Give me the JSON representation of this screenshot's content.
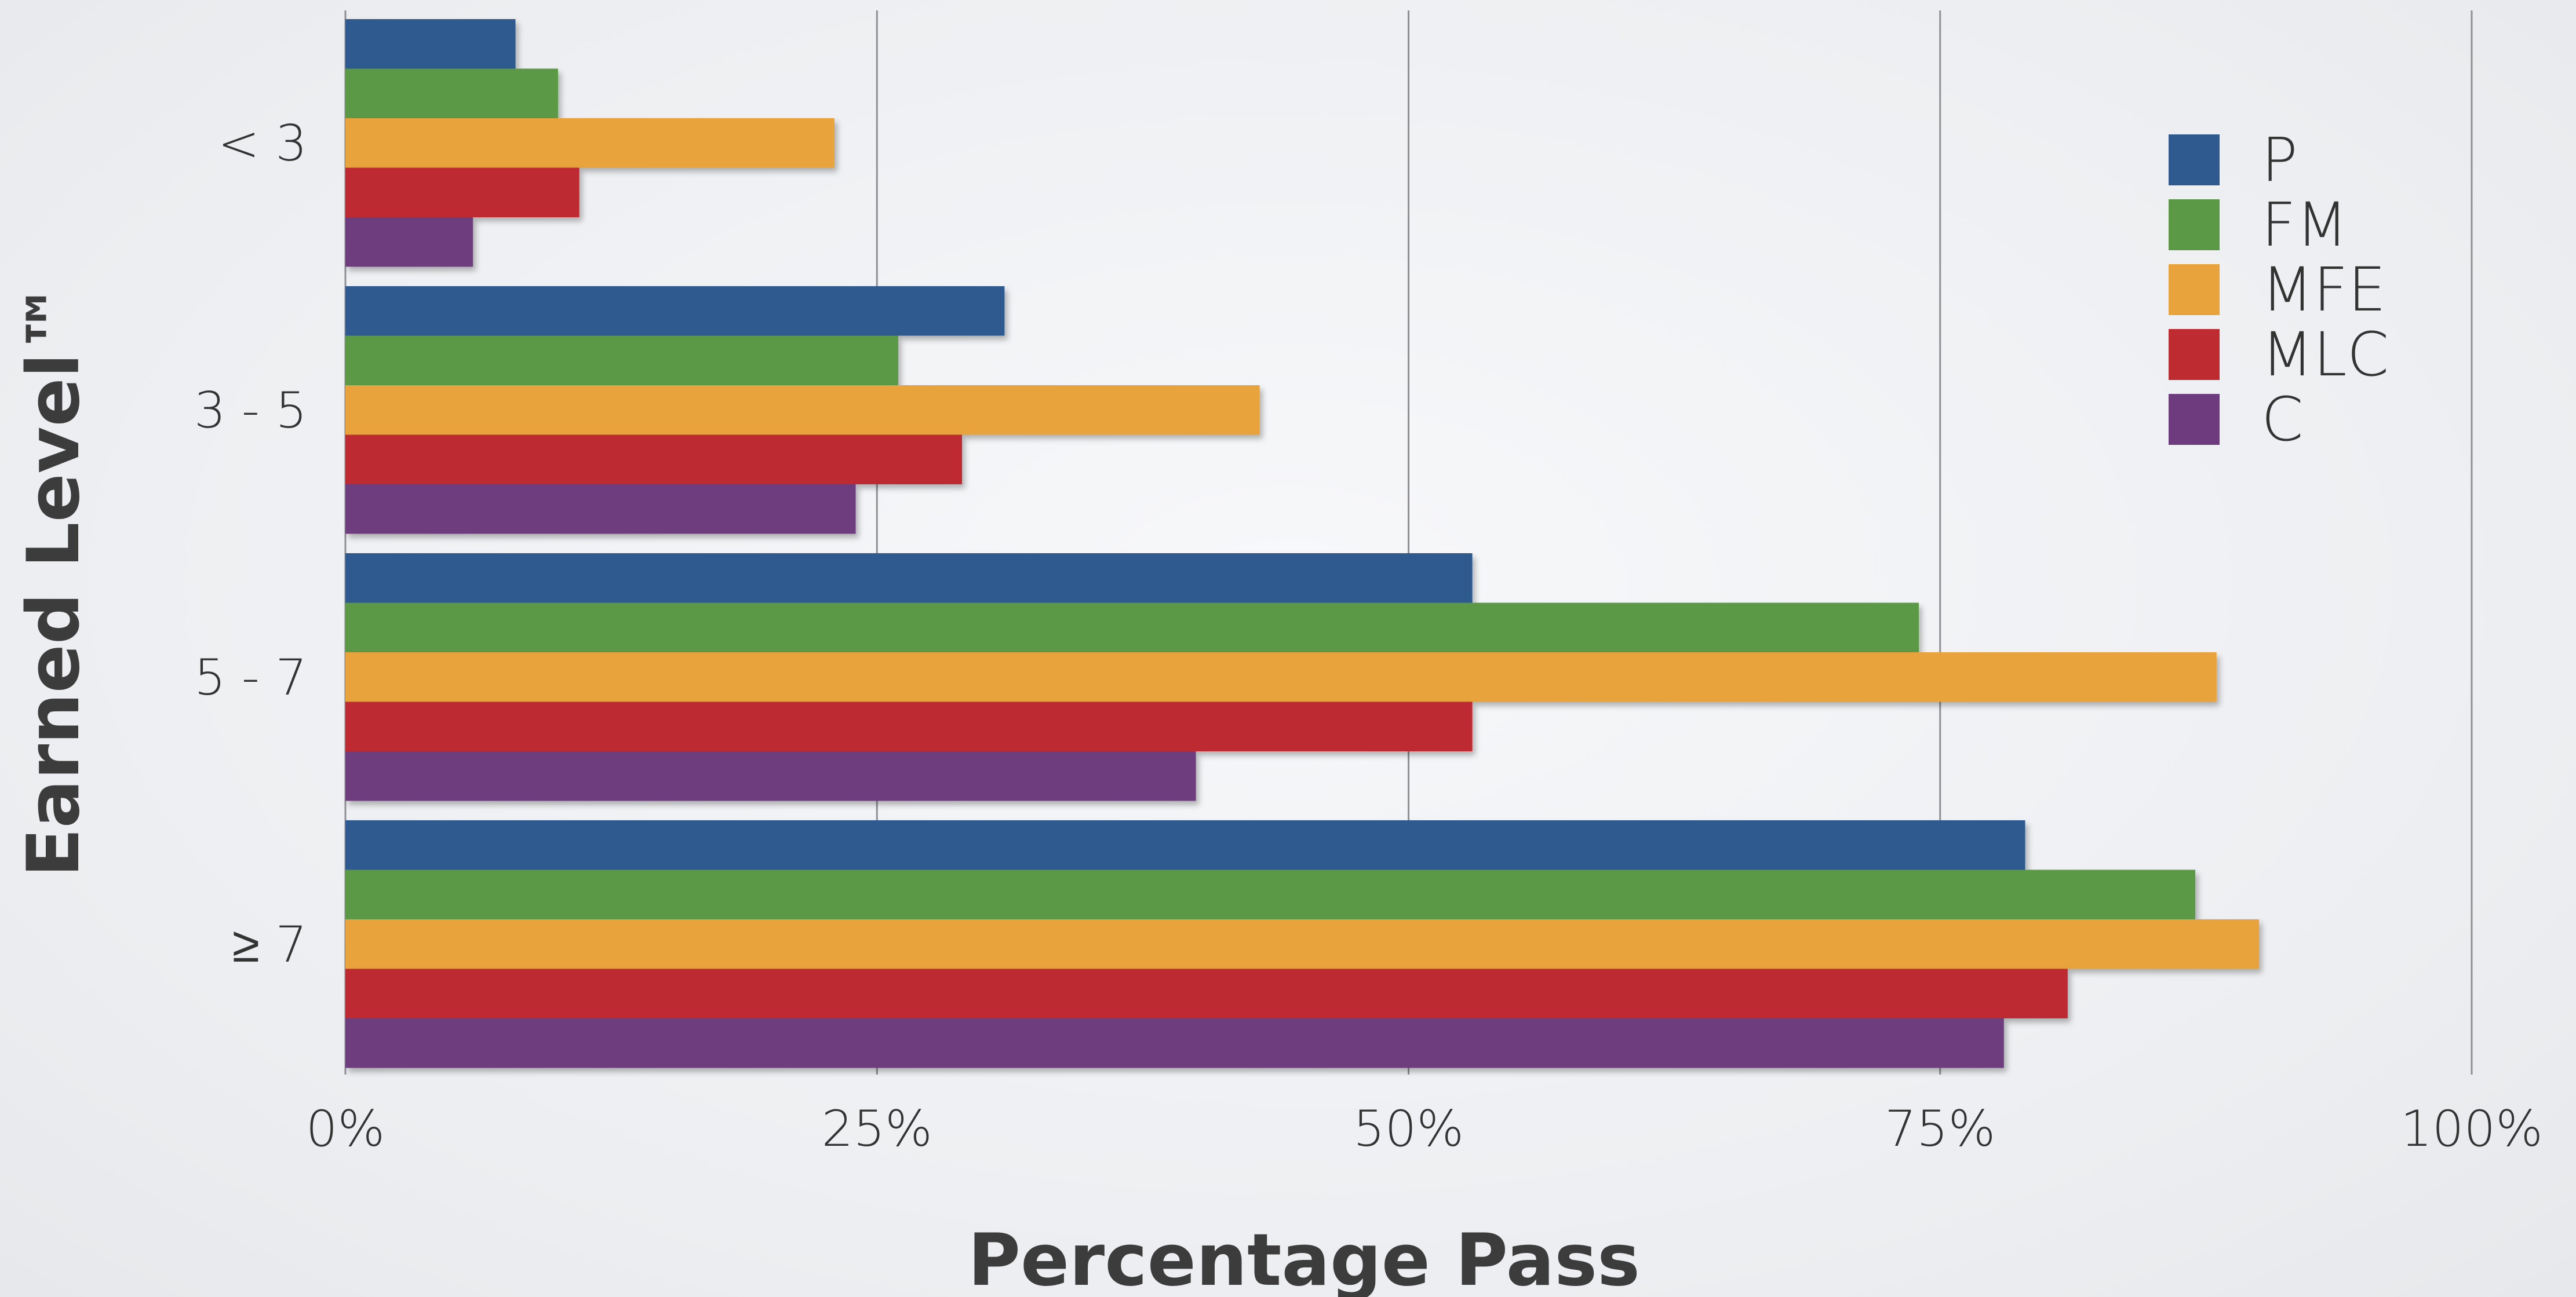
{
  "chart_data": {
    "type": "bar",
    "orientation": "horizontal",
    "categories": [
      "< 3",
      "3 - 5",
      "5 - 7",
      "≥ 7"
    ],
    "xlabel": "Percentage Pass",
    "ylabel": "Earned Level™",
    "xlim": [
      0,
      100
    ],
    "x_ticks": [
      "0%",
      "25%",
      "50%",
      "75%",
      "100%"
    ],
    "x_tick_values": [
      0,
      25,
      50,
      75,
      100
    ],
    "grid": "vertical",
    "legend_position": "top-right",
    "series": [
      {
        "name": "P",
        "color": "#2e5a8f",
        "values": [
          8,
          31,
          53,
          79
        ]
      },
      {
        "name": "FM",
        "color": "#5c9947",
        "values": [
          10,
          26,
          74,
          87
        ]
      },
      {
        "name": "MFE",
        "color": "#e8a33d",
        "values": [
          23,
          43,
          88,
          90
        ]
      },
      {
        "name": "MLC",
        "color": "#be2b30",
        "values": [
          11,
          29,
          53,
          81
        ]
      },
      {
        "name": "C",
        "color": "#6e3c7e",
        "values": [
          6,
          24,
          40,
          78
        ]
      }
    ]
  }
}
